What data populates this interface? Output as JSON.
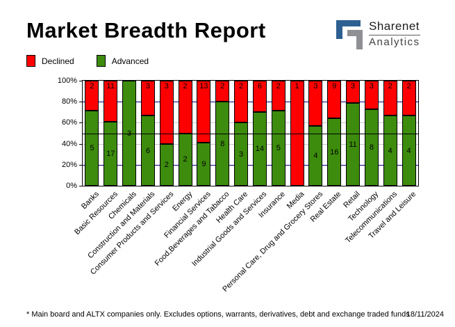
{
  "header": {
    "title": "Market Breadth Report"
  },
  "logo": {
    "brand": "Sharenet",
    "sub": "Analytics",
    "mark_blue": "#2d6091",
    "mark_gray": "#8e9093"
  },
  "legend": [
    {
      "label": "Declined",
      "color": "#ff0000"
    },
    {
      "label": "Advanced",
      "color": "#3d8c0d"
    }
  ],
  "chart_data": {
    "type": "bar",
    "stacked": true,
    "normalized": "percent",
    "categories": [
      "Banks",
      "Basic Resources",
      "Chemicals",
      "Construction and Materials",
      "Consumer Products and Services",
      "Energy",
      "Financial Services",
      "Food,Beverages and Tabacco",
      "Health Care",
      "Industrial Goods and Services",
      "Insurance",
      "Media",
      "Personal Care, Drug and Grocery Stores",
      "Real Estate",
      "Retail",
      "Technology",
      "Telecommunications",
      "Travel and Leisure"
    ],
    "series": [
      {
        "name": "Declined",
        "color": "#ff0000",
        "values": [
          2,
          11,
          0,
          3,
          3,
          2,
          13,
          2,
          2,
          6,
          2,
          1,
          3,
          9,
          3,
          3,
          2,
          2
        ]
      },
      {
        "name": "Advanced",
        "color": "#3d8c0d",
        "values": [
          5,
          17,
          3,
          6,
          2,
          2,
          9,
          8,
          3,
          14,
          5,
          0,
          4,
          16,
          11,
          8,
          4,
          4
        ]
      }
    ],
    "y_ticks": [
      {
        "label": "0%",
        "value": 0
      },
      {
        "label": "20%",
        "value": 20
      },
      {
        "label": "40%",
        "value": 40
      },
      {
        "label": "60%",
        "value": 60
      },
      {
        "label": "80%",
        "value": 80
      },
      {
        "label": "100%",
        "value": 100
      }
    ],
    "ylim": [
      0,
      100
    ],
    "gridlines": {
      "navy": {
        "color": "#000080",
        "at": [
          20,
          80
        ]
      },
      "gray": {
        "color": "#c6c6c6",
        "at": [
          40,
          60
        ]
      },
      "black_mid": {
        "color": "#000000",
        "at": 50
      }
    },
    "legend_position": "top-left"
  },
  "footer": {
    "note": "* Main board and ALTX companies only. Excludes options, warrants, derivatives, debt and exchange traded funds",
    "date": "18/11/2024"
  }
}
